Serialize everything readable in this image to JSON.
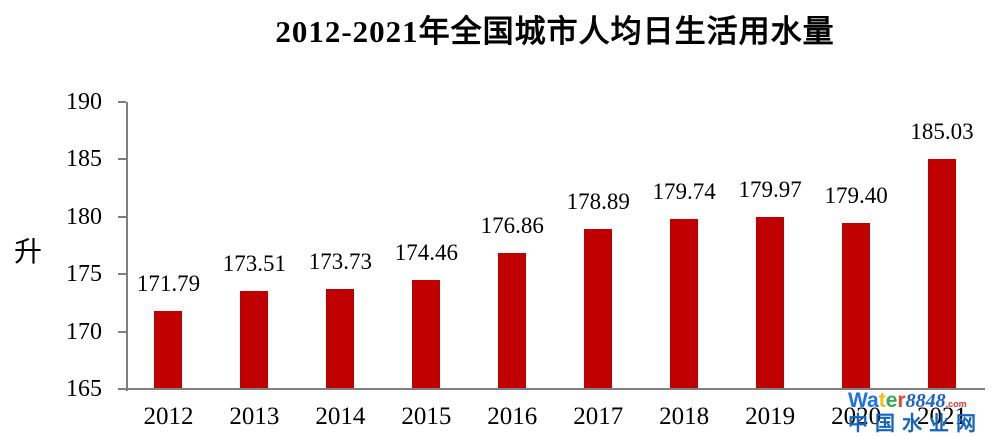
{
  "chart_data": {
    "type": "bar",
    "title": "2012-2021年全国城市人均日生活用水量",
    "categories": [
      "2012",
      "2013",
      "2014",
      "2015",
      "2016",
      "2017",
      "2018",
      "2019",
      "2020",
      "2021"
    ],
    "values": [
      171.79,
      173.51,
      173.73,
      174.46,
      176.86,
      178.89,
      179.74,
      179.97,
      179.4,
      185.03
    ],
    "xlabel": "",
    "ylabel": "升",
    "ylim": [
      165,
      190
    ],
    "yticks": [
      165,
      170,
      175,
      180,
      185,
      190
    ],
    "grid": false,
    "legend": false,
    "bar_color": "#c00000",
    "axis_color": "#7f7f7f",
    "label_color": "#000000"
  },
  "watermark": {
    "brand_letters": [
      {
        "ch": "W",
        "color": "#1a73e8"
      },
      {
        "ch": "a",
        "color": "#1a73e8"
      },
      {
        "ch": "t",
        "color": "#fbbc05"
      },
      {
        "ch": "e",
        "color": "#34a853"
      },
      {
        "ch": "r",
        "color": "#ea4335"
      }
    ],
    "brand_number": "8848",
    "brand_tld": ".com",
    "subtitle": "中国水业网"
  }
}
